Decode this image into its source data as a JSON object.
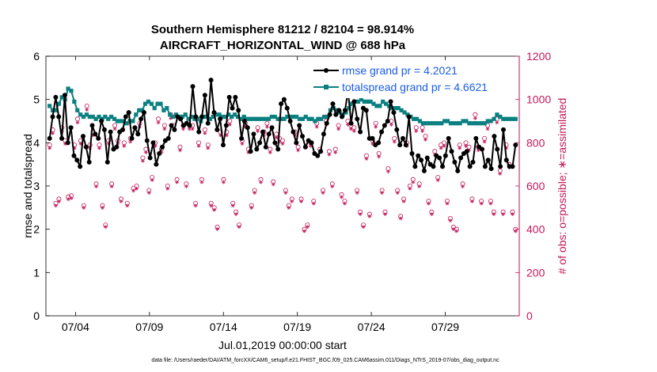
{
  "chart_data": {
    "type": "line",
    "title_line1": "Southern Hemisphere 81212 / 82104 = 98.914%",
    "title_line2": "AIRCRAFT_HORIZONTAL_WIND @ 688 hPa",
    "xlabel": "Jul.01,2019 00:00:00 start",
    "ylabel_left": "rmse and totalspread",
    "ylabel_right": "# of obs: o=possible; ∗=assimilated",
    "footer": "data file: /Users/raeder/DAI/ATM_forcXX/CAM6_setup/f.e21.FHIST_BGC.f09_025.CAM6assim.011/Diags_NTrS_2019-07/obs_diag_output.nc",
    "xlim": [
      1,
      33
    ],
    "ylim_left": [
      0,
      6
    ],
    "ylim_right": [
      0,
      1200
    ],
    "x_ticks": [
      3,
      8,
      13,
      18,
      23,
      28
    ],
    "x_tick_labels": [
      "07/04",
      "07/09",
      "07/14",
      "07/19",
      "07/24",
      "07/29"
    ],
    "y_ticks_left": [
      "0",
      "1",
      "2",
      "3",
      "4",
      "5",
      "6"
    ],
    "y_ticks_right": [
      "0",
      "200",
      "400",
      "600",
      "800",
      "1000",
      "1200"
    ],
    "colors": {
      "rmse": "#000000",
      "spread": "#0b8080",
      "obs": "#c2185b",
      "legend_text": "#1a5ce6"
    },
    "series": [
      {
        "name": "rmse grand pr = 4.2021",
        "axis": "left",
        "values": [
          4.1,
          4.6,
          5.05,
          4.6,
          4.1,
          5.1,
          4.0,
          4.35,
          3.7,
          3.6,
          3.45,
          4.15,
          3.9,
          3.55,
          4.4,
          4.2,
          4.1,
          4.5,
          4.3,
          3.55,
          4.25,
          3.85,
          3.9,
          4.25,
          4.3,
          4.6,
          4.7,
          4.1,
          4.35,
          4.2,
          4.55,
          4.7,
          4.05,
          3.65,
          4.0,
          3.5,
          3.75,
          3.9,
          4.05,
          4.1,
          4.4,
          4.3,
          4.6,
          4.55,
          4.4,
          4.45,
          4.4,
          5.3,
          4.6,
          4.25,
          4.6,
          5.1,
          4.45,
          5.45,
          4.7,
          4.3,
          4.55,
          3.95,
          4.4,
          5.05,
          4.8,
          5.05,
          4.75,
          4.1,
          4.5,
          4.35,
          3.8,
          4.2,
          3.85,
          4.0,
          4.25,
          3.9,
          4.2,
          4.35,
          4.0,
          3.85,
          4.9,
          5.0,
          4.8,
          4.5,
          4.25,
          4.0,
          4.4,
          4.15,
          3.9,
          4.05,
          4.0,
          3.75,
          3.7,
          3.8,
          4.2,
          4.45,
          4.65,
          4.9,
          4.65,
          4.75,
          4.6,
          4.75,
          5.2,
          4.45,
          4.95,
          4.55,
          4.25,
          4.8,
          4.75,
          4.1,
          4.1,
          3.95,
          4.0,
          4.25,
          4.4,
          4.5,
          4.95,
          4.7,
          4.3,
          3.95,
          4.1,
          3.95,
          4.6,
          3.75,
          3.45,
          3.7,
          3.6,
          3.35,
          3.65,
          3.5,
          3.45,
          3.7,
          3.65,
          3.45,
          3.7,
          4.1,
          3.8,
          3.55,
          3.35,
          3.65,
          3.75,
          3.8,
          3.45,
          3.55,
          4.1,
          3.9,
          3.85,
          3.45,
          3.6,
          3.4,
          4.15,
          3.85,
          3.45,
          4.3,
          3.6,
          3.45,
          3.45,
          3.95
        ]
      },
      {
        "name": "totalspread grand pr = 4.6621",
        "axis": "left",
        "values": [
          4.85,
          4.75,
          4.75,
          4.9,
          5.05,
          5.0,
          5.25,
          5.2,
          4.95,
          4.75,
          4.65,
          4.6,
          4.65,
          4.6,
          4.6,
          4.55,
          4.6,
          4.55,
          4.6,
          4.55,
          4.6,
          4.55,
          4.5,
          4.5,
          4.5,
          4.45,
          4.5,
          4.5,
          4.65,
          4.75,
          4.75,
          4.9,
          4.95,
          4.9,
          4.8,
          4.9,
          4.9,
          4.75,
          4.8,
          4.65,
          4.6,
          4.65,
          4.6,
          4.6,
          4.65,
          4.55,
          4.6,
          4.55,
          4.55,
          4.5,
          4.6,
          4.6,
          4.55,
          4.6,
          4.65,
          4.65,
          4.6,
          4.6,
          4.65,
          4.6,
          4.65,
          4.6,
          4.55,
          4.6,
          4.55,
          4.55,
          4.55,
          4.55,
          4.55,
          4.55,
          4.55,
          4.55,
          4.6,
          4.6,
          4.55,
          4.55,
          4.55,
          4.6,
          4.6,
          4.6,
          4.6,
          4.55,
          4.55,
          4.6,
          4.55,
          4.55,
          4.5,
          4.55,
          4.55,
          4.6,
          4.6,
          4.75,
          4.8,
          4.75,
          4.7,
          4.65,
          4.7,
          4.8,
          4.9,
          4.95,
          4.95,
          5.0,
          4.95,
          4.95,
          4.95,
          4.9,
          4.85,
          4.85,
          4.95,
          4.9,
          4.85,
          4.8,
          4.8,
          4.8,
          4.75,
          4.7,
          4.65,
          4.6,
          4.55,
          4.55,
          4.5,
          4.45,
          4.45,
          4.45,
          4.45,
          4.45,
          4.45,
          4.45,
          4.5,
          4.5,
          4.45,
          4.45,
          4.45,
          4.45,
          4.5,
          4.5,
          4.45,
          4.45,
          4.45,
          4.45,
          4.45,
          4.45,
          4.5,
          4.5,
          4.55,
          4.65,
          4.6,
          4.55,
          4.55,
          4.55,
          4.55,
          4.55
        ]
      },
      {
        "name": "obs possible (o)",
        "axis": "right",
        "values": [
          790,
          860,
          520,
          540,
          870,
          810,
          550,
          555,
          790,
          910,
          810,
          510,
          970,
          790,
          850,
          610,
          790,
          510,
          420,
          810,
          610,
          880,
          810,
          540,
          800,
          520,
          820,
          590,
          600,
          890,
          730,
          770,
          580,
          640,
          800,
          910,
          770,
          880,
          600,
          930,
          880,
          630,
          780,
          880,
          610,
          880,
          880,
          520,
          800,
          630,
          860,
          790,
          520,
          500,
          410,
          850,
          630,
          850,
          900,
          520,
          480,
          420,
          810,
          890,
          770,
          510,
          580,
          870,
          630,
          850,
          890,
          770,
          620,
          840,
          820,
          810,
          580,
          510,
          540,
          850,
          780,
          540,
          400,
          420,
          800,
          530,
          890,
          770,
          580,
          900,
          760,
          610,
          770,
          880,
          560,
          530,
          900,
          880,
          870,
          580,
          480,
          420,
          740,
          470,
          810,
          890,
          750,
          580,
          480,
          680,
          900,
          820,
          580,
          460,
          540,
          800,
          600,
          630,
          870,
          610,
          870,
          830,
          530,
          480,
          760,
          640,
          790,
          800,
          530,
          450,
          410,
          400,
          790,
          610,
          800,
          780,
          540,
          930,
          780,
          530,
          820,
          880,
          530,
          480,
          910,
          670,
          480,
          790,
          700,
          480,
          400
        ]
      }
    ]
  }
}
